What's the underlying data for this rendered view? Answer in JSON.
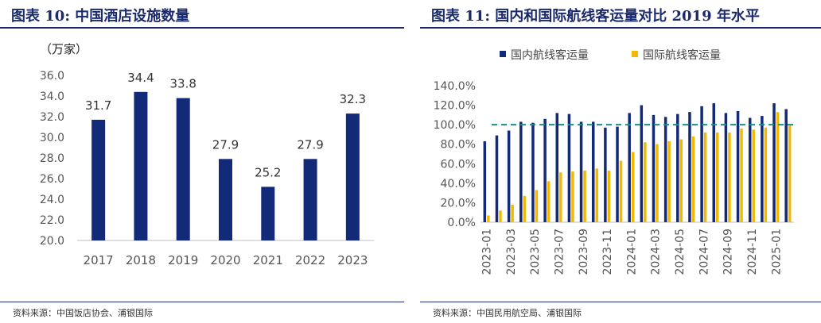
{
  "left": {
    "fig_label": "图表 10:",
    "title": "中国酒店设施数量",
    "source": "资料来源：中国饭店协会、浦银国际"
  },
  "right": {
    "fig_label": "图表 11:",
    "title": "国内和国际航线客运量对比 2019 年水平",
    "source": "资料来源：中国民用航空局、浦银国际"
  },
  "chart_data": [
    {
      "type": "bar",
      "title": "中国酒店设施数量",
      "unit_label": "（万家）",
      "categories": [
        "2017",
        "2018",
        "2019",
        "2020",
        "2021",
        "2022",
        "2023"
      ],
      "values": [
        31.7,
        34.4,
        33.8,
        27.9,
        25.2,
        27.9,
        32.3
      ],
      "data_labels": [
        "31.7",
        "34.4",
        "33.8",
        "27.9",
        "25.2",
        "27.9",
        "32.3"
      ],
      "ylim": [
        20.0,
        36.0
      ],
      "yticks": [
        "20.0",
        "22.0",
        "24.0",
        "26.0",
        "28.0",
        "30.0",
        "32.0",
        "34.0",
        "36.0"
      ],
      "bar_color": "#132a78",
      "grid": false
    },
    {
      "type": "bar",
      "title": "国内和国际航线客运量对比 2019 年水平",
      "x": [
        "2023-01",
        "2023-02",
        "2023-03",
        "2023-04",
        "2023-05",
        "2023-06",
        "2023-07",
        "2023-08",
        "2023-09",
        "2023-10",
        "2023-11",
        "2023-12",
        "2024-01",
        "2024-02",
        "2024-03",
        "2024-04",
        "2024-05",
        "2024-06",
        "2024-07",
        "2024-08",
        "2024-09",
        "2024-10",
        "2024-11",
        "2024-12",
        "2025-01",
        "2025-02"
      ],
      "xticks": [
        "2023-01",
        "2023-03",
        "2023-05",
        "2023-07",
        "2023-09",
        "2023-11",
        "2024-01",
        "2024-03",
        "2024-05",
        "2024-07",
        "2024-09",
        "2024-11",
        "2025-01"
      ],
      "series": [
        {
          "name": "国内航线客运量",
          "color": "#132a78",
          "values": [
            83,
            89,
            94,
            103,
            102,
            106,
            112,
            111,
            103,
            103,
            97,
            98,
            112,
            120,
            110,
            108,
            111,
            113,
            119,
            122,
            112,
            114,
            107,
            109,
            122,
            116
          ]
        },
        {
          "name": "国际航线客运量",
          "color": "#f5b800",
          "values": [
            7,
            12,
            18,
            27,
            33,
            42,
            51,
            52,
            53,
            55,
            53,
            63,
            72,
            82,
            80,
            83,
            85,
            88,
            92,
            92,
            92,
            96,
            95,
            97,
            113,
            99
          ]
        }
      ],
      "reference_line": {
        "value": 100,
        "color": "#1a8a8a",
        "style": "dashed"
      },
      "ylim": [
        0,
        140
      ],
      "yticks": [
        "0.0%",
        "20.0%",
        "40.0%",
        "60.0%",
        "80.0%",
        "100.0%",
        "120.0%",
        "140.0%"
      ],
      "legend_position": "top",
      "grid": false
    }
  ]
}
